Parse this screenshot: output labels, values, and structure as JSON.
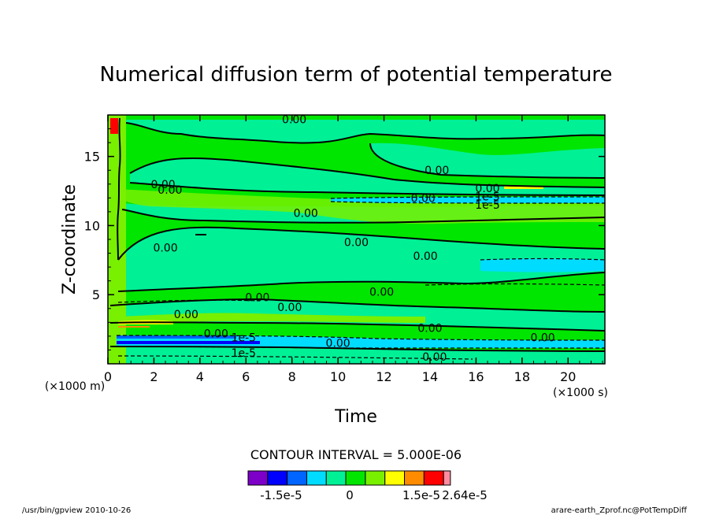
{
  "chart_data": {
    "type": "contour",
    "title": "Numerical diffusion term of potential temperature",
    "xlabel": "Time",
    "ylabel": "Z-coordinate",
    "x_unit": "(×1000 s)",
    "y_unit": "(×1000 m)",
    "xlim": [
      0,
      21.6
    ],
    "ylim": [
      0,
      18
    ],
    "x_ticks": [
      0,
      2,
      4,
      6,
      8,
      10,
      12,
      14,
      16,
      18,
      20
    ],
    "y_ticks": [
      5,
      10,
      15
    ],
    "contour_interval_text": "CONTOUR INTERVAL = 5.000E-06",
    "colorbar": {
      "colors": [
        "#7d00c8",
        "#0000ff",
        "#0064ff",
        "#00dcff",
        "#00f096",
        "#00e600",
        "#78f000",
        "#ffff00",
        "#ff8c00",
        "#ff0000",
        "#ff8ca0"
      ],
      "labels": [
        "-1.5e-5",
        "0",
        "1.5e-5",
        "2.64e-5"
      ]
    },
    "contour_labels": [
      {
        "text": "0.00",
        "x": 8.1,
        "y": 17.7
      },
      {
        "text": "0.00",
        "x": 14.3,
        "y": 14.0
      },
      {
        "text": "0.00",
        "x": 2.4,
        "y": 13.0
      },
      {
        "text": "0.00",
        "x": 2.7,
        "y": 12.6
      },
      {
        "text": "0.00",
        "x": 16.5,
        "y": 12.7
      },
      {
        "text": "0.00",
        "x": 13.7,
        "y": 12.0
      },
      {
        "text": "1e-5",
        "x": 16.5,
        "y": 12.1
      },
      {
        "text": "1e-5",
        "x": 16.5,
        "y": 11.5
      },
      {
        "text": "0.00",
        "x": 8.6,
        "y": 10.9
      },
      {
        "text": "0.00",
        "x": 10.8,
        "y": 8.8
      },
      {
        "text": "0.00",
        "x": 13.8,
        "y": 7.8
      },
      {
        "text": "0.00",
        "x": 2.5,
        "y": 8.4
      },
      {
        "text": "0.00",
        "x": 6.5,
        "y": 4.8
      },
      {
        "text": "0.00",
        "x": 7.9,
        "y": 4.1
      },
      {
        "text": "0.00",
        "x": 11.9,
        "y": 5.2
      },
      {
        "text": "0.00",
        "x": 3.4,
        "y": 3.6
      },
      {
        "text": "0.00",
        "x": 14.0,
        "y": 2.6
      },
      {
        "text": "0.00",
        "x": 18.9,
        "y": 1.9
      },
      {
        "text": "0.00",
        "x": 4.7,
        "y": 2.2
      },
      {
        "text": "0.00",
        "x": 10.0,
        "y": 1.5
      },
      {
        "text": "1e-5",
        "x": 5.9,
        "y": 1.9
      },
      {
        "text": "1e-5",
        "x": 5.9,
        "y": 0.8
      },
      {
        "text": "0.00",
        "x": 14.2,
        "y": 0.5
      }
    ]
  },
  "footer": {
    "left": "/usr/bin/gpview   2010-10-26",
    "right": "arare-earth_Zprof.nc@PotTempDiff"
  }
}
